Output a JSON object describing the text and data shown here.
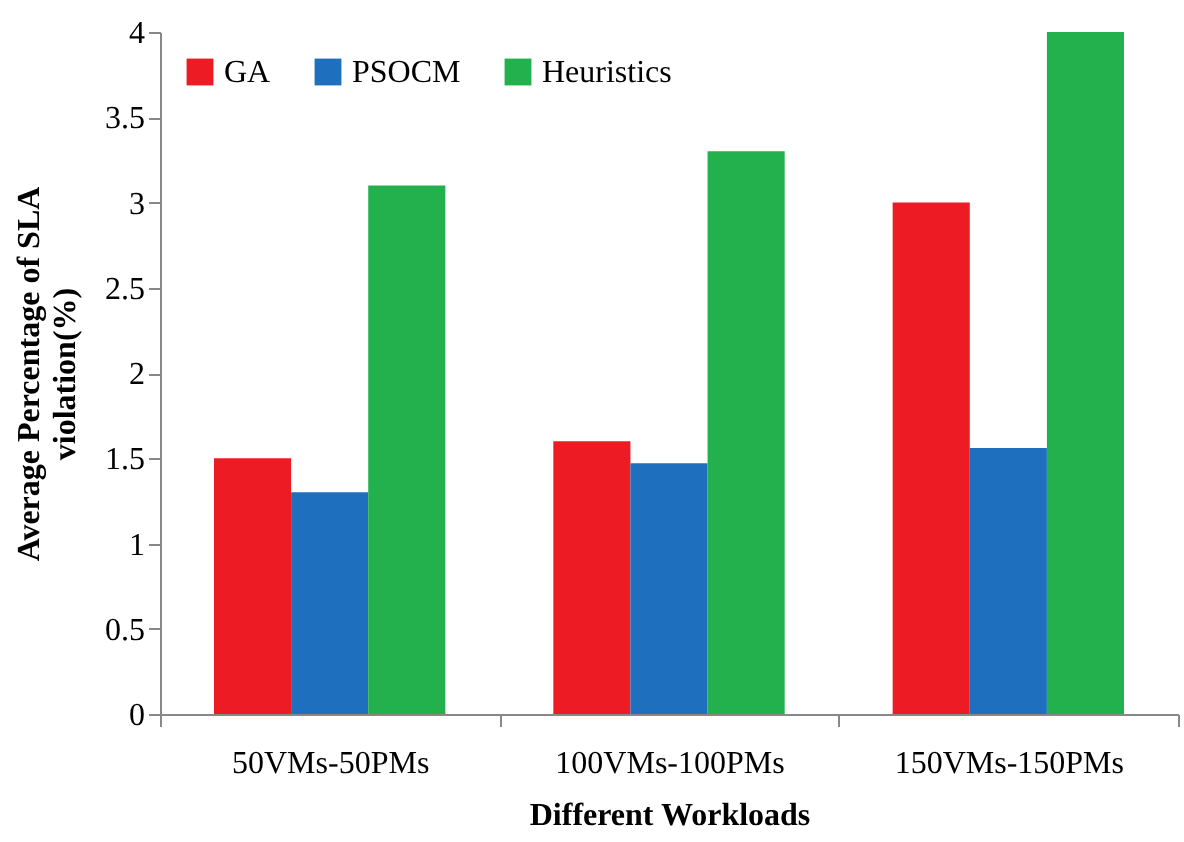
{
  "chart_data": {
    "type": "bar",
    "xlabel": "Different Workloads",
    "ylabel": "Average Percentage of SLA\nviolation(%)",
    "categories": [
      "50VMs-50PMs",
      "100VMs-100PMs",
      "150VMs-150PMs"
    ],
    "series": [
      {
        "name": "GA",
        "color": "#ed1c24",
        "values": [
          1.5,
          1.6,
          3.0
        ]
      },
      {
        "name": "PSOCM",
        "color": "#1f6fbf",
        "values": [
          1.3,
          1.47,
          1.56
        ]
      },
      {
        "name": "Heuristics",
        "color": "#22b14c",
        "values": [
          3.1,
          3.3,
          4.0
        ]
      }
    ],
    "ylim": [
      0,
      4
    ],
    "yticks": [
      0,
      0.5,
      1,
      1.5,
      2,
      2.5,
      3,
      3.5,
      4
    ],
    "grid": false,
    "legend": "top left"
  }
}
